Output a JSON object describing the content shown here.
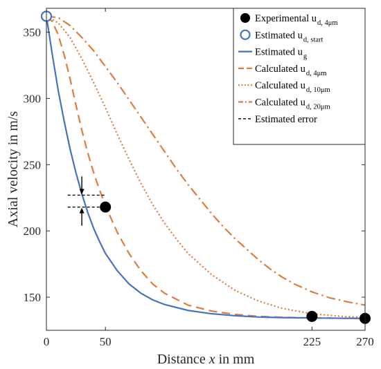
{
  "chart_data": {
    "type": "line",
    "xlabel_parts": [
      "Distance ",
      "x",
      " in mm"
    ],
    "ylabel": "Axial velocity in m/s",
    "xlim": [
      0,
      270
    ],
    "ylim": [
      125,
      368
    ],
    "x_ticks": [
      0,
      50,
      225,
      270
    ],
    "y_ticks": [
      150,
      200,
      250,
      300,
      350
    ],
    "grid": false,
    "legend_position": "top-right",
    "colors": {
      "blue": "#4472C4",
      "orange": "#E07B39",
      "black": "#000000",
      "axis": "#262626"
    },
    "series": [
      {
        "name_main": "Experimental u",
        "name_sub": "d, 4μm",
        "kind": "markers-filled",
        "points": [
          [
            50,
            218
          ],
          [
            225,
            135.5
          ],
          [
            270,
            134
          ]
        ]
      },
      {
        "name_main": "Estimated u",
        "name_sub": "d, start",
        "kind": "markers-open",
        "points": [
          [
            0,
            362
          ]
        ]
      },
      {
        "name_main": "Estimated u",
        "name_sub": "g",
        "kind": "line-solid",
        "points": [
          [
            0,
            362
          ],
          [
            5,
            333
          ],
          [
            10,
            306
          ],
          [
            15,
            283
          ],
          [
            20,
            262
          ],
          [
            25,
            244
          ],
          [
            30,
            228
          ],
          [
            35,
            214
          ],
          [
            40,
            202
          ],
          [
            45,
            192
          ],
          [
            50,
            183
          ],
          [
            60,
            170
          ],
          [
            70,
            160
          ],
          [
            80,
            153
          ],
          [
            90,
            148
          ],
          [
            100,
            144.5
          ],
          [
            120,
            140
          ],
          [
            140,
            137.5
          ],
          [
            160,
            136
          ],
          [
            180,
            135
          ],
          [
            200,
            134.6
          ],
          [
            225,
            134.3
          ],
          [
            250,
            134.1
          ],
          [
            270,
            134
          ]
        ]
      },
      {
        "name_main": "Calculated u",
        "name_sub": "d, 4μm",
        "kind": "line-dashed",
        "points": [
          [
            0,
            362
          ],
          [
            5,
            358
          ],
          [
            10,
            348
          ],
          [
            15,
            333
          ],
          [
            20,
            315
          ],
          [
            25,
            295
          ],
          [
            30,
            276
          ],
          [
            35,
            259
          ],
          [
            40,
            244
          ],
          [
            45,
            231
          ],
          [
            50,
            219
          ],
          [
            60,
            199
          ],
          [
            70,
            183
          ],
          [
            80,
            170
          ],
          [
            90,
            160
          ],
          [
            100,
            153
          ],
          [
            120,
            144
          ],
          [
            140,
            139.5
          ],
          [
            160,
            137
          ],
          [
            180,
            135.5
          ],
          [
            200,
            134.8
          ],
          [
            225,
            134.4
          ],
          [
            250,
            134.1
          ],
          [
            270,
            134
          ]
        ]
      },
      {
        "name_main": "Calculated u",
        "name_sub": "d, 10μm",
        "kind": "line-dotted",
        "points": [
          [
            0,
            362
          ],
          [
            10,
            357
          ],
          [
            20,
            346
          ],
          [
            30,
            330
          ],
          [
            40,
            312
          ],
          [
            50,
            293
          ],
          [
            60,
            273
          ],
          [
            70,
            254
          ],
          [
            80,
            236
          ],
          [
            90,
            220
          ],
          [
            100,
            206
          ],
          [
            110,
            194
          ],
          [
            120,
            183
          ],
          [
            140,
            167
          ],
          [
            160,
            155
          ],
          [
            180,
            147
          ],
          [
            200,
            141.5
          ],
          [
            225,
            137.5
          ],
          [
            250,
            135.5
          ],
          [
            270,
            134.8
          ]
        ]
      },
      {
        "name_main": "Calculated u",
        "name_sub": "d, 20μm",
        "kind": "line-dashdot",
        "points": [
          [
            0,
            362
          ],
          [
            10,
            361
          ],
          [
            20,
            355
          ],
          [
            30,
            346
          ],
          [
            40,
            336
          ],
          [
            50,
            324
          ],
          [
            60,
            312
          ],
          [
            70,
            299
          ],
          [
            80,
            286
          ],
          [
            90,
            273
          ],
          [
            100,
            260
          ],
          [
            110,
            247
          ],
          [
            120,
            235
          ],
          [
            130,
            224
          ],
          [
            140,
            213
          ],
          [
            150,
            203
          ],
          [
            160,
            194
          ],
          [
            170,
            186
          ],
          [
            180,
            178
          ],
          [
            190,
            171
          ],
          [
            200,
            165
          ],
          [
            210,
            160
          ],
          [
            225,
            154
          ],
          [
            240,
            149.5
          ],
          [
            255,
            146.5
          ],
          [
            270,
            144
          ]
        ]
      },
      {
        "name_main": "Estimated error",
        "name_sub": "",
        "kind": "error-lines",
        "y_values": [
          227,
          218
        ]
      }
    ]
  }
}
